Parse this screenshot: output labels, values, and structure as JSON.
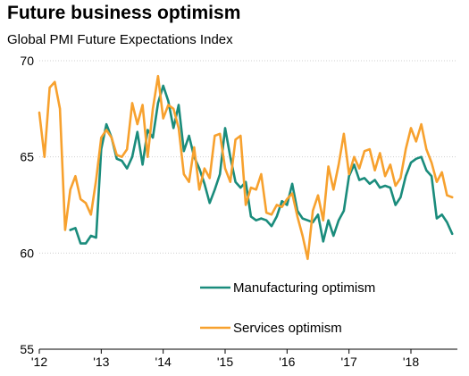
{
  "colors": {
    "manufacturing": "#1a8c7c",
    "services": "#f7a12e",
    "grid": "#cfcfcf",
    "axis": "#000000"
  },
  "chart_data": {
    "type": "line",
    "title": "Future business optimism",
    "subtitle": "Global PMI Future Expectations Index",
    "xlabel": "",
    "ylabel": "",
    "xlim": [
      2012.0,
      2018.75
    ],
    "ylim": [
      55,
      70
    ],
    "y_ticks": [
      55,
      60,
      65,
      70
    ],
    "x_ticks": [
      {
        "value": 2012,
        "label": "'12"
      },
      {
        "value": 2013,
        "label": "'13"
      },
      {
        "value": 2014,
        "label": "'14"
      },
      {
        "value": 2015,
        "label": "'15"
      },
      {
        "value": 2016,
        "label": "'16"
      },
      {
        "value": 2017,
        "label": "'17"
      },
      {
        "value": 2018,
        "label": "'18"
      }
    ],
    "grid": true,
    "legend_position": "center-right",
    "series": [
      {
        "name": "Manufacturing optimism",
        "color": "#1a8c7c",
        "x": [
          2012.5,
          2012.583,
          2012.667,
          2012.75,
          2012.833,
          2012.917,
          2013.0,
          2013.083,
          2013.167,
          2013.25,
          2013.333,
          2013.417,
          2013.5,
          2013.583,
          2013.667,
          2013.75,
          2013.833,
          2013.917,
          2014.0,
          2014.083,
          2014.167,
          2014.25,
          2014.333,
          2014.417,
          2014.5,
          2014.583,
          2014.667,
          2014.75,
          2014.833,
          2014.917,
          2015.0,
          2015.083,
          2015.167,
          2015.25,
          2015.333,
          2015.417,
          2015.5,
          2015.583,
          2015.667,
          2015.75,
          2015.833,
          2015.917,
          2016.0,
          2016.083,
          2016.167,
          2016.25,
          2016.333,
          2016.417,
          2016.5,
          2016.583,
          2016.667,
          2016.75,
          2016.833,
          2016.917,
          2017.0,
          2017.083,
          2017.167,
          2017.25,
          2017.333,
          2017.417,
          2017.5,
          2017.583,
          2017.667,
          2017.75,
          2017.833,
          2017.917,
          2018.0,
          2018.083,
          2018.167,
          2018.25,
          2018.333,
          2018.417,
          2018.5,
          2018.583,
          2018.667
        ],
        "values": [
          61.2,
          61.3,
          60.5,
          60.5,
          60.9,
          60.8,
          65.4,
          66.7,
          66.0,
          64.9,
          64.8,
          64.4,
          65.0,
          66.3,
          64.6,
          66.4,
          66.0,
          67.8,
          68.7,
          67.9,
          66.5,
          67.7,
          65.3,
          66.1,
          65.0,
          64.4,
          63.6,
          62.6,
          63.3,
          64.1,
          66.5,
          65.0,
          63.7,
          63.4,
          63.7,
          61.9,
          61.7,
          61.8,
          61.7,
          61.4,
          61.9,
          62.7,
          62.5,
          63.6,
          62.2,
          61.8,
          61.7,
          61.6,
          62.0,
          60.6,
          61.7,
          60.9,
          61.7,
          62.2,
          64.0,
          64.6,
          63.8,
          63.9,
          63.6,
          63.8,
          63.4,
          63.5,
          63.4,
          62.5,
          62.9,
          64.0,
          64.7,
          64.9,
          65.0,
          64.3,
          64.0,
          61.8,
          62.0,
          61.6,
          61.0
        ]
      },
      {
        "name": "Services optimism",
        "color": "#f7a12e",
        "x": [
          2012.0,
          2012.083,
          2012.167,
          2012.25,
          2012.333,
          2012.417,
          2012.5,
          2012.583,
          2012.667,
          2012.75,
          2012.833,
          2012.917,
          2013.0,
          2013.083,
          2013.167,
          2013.25,
          2013.333,
          2013.417,
          2013.5,
          2013.583,
          2013.667,
          2013.75,
          2013.833,
          2013.917,
          2014.0,
          2014.083,
          2014.167,
          2014.25,
          2014.333,
          2014.417,
          2014.5,
          2014.583,
          2014.667,
          2014.75,
          2014.833,
          2014.917,
          2015.0,
          2015.083,
          2015.167,
          2015.25,
          2015.333,
          2015.417,
          2015.5,
          2015.583,
          2015.667,
          2015.75,
          2015.833,
          2015.917,
          2016.0,
          2016.083,
          2016.167,
          2016.25,
          2016.333,
          2016.417,
          2016.5,
          2016.583,
          2016.667,
          2016.75,
          2016.833,
          2016.917,
          2017.0,
          2017.083,
          2017.167,
          2017.25,
          2017.333,
          2017.417,
          2017.5,
          2017.583,
          2017.667,
          2017.75,
          2017.833,
          2017.917,
          2018.0,
          2018.083,
          2018.167,
          2018.25,
          2018.333,
          2018.417,
          2018.5,
          2018.583,
          2018.667
        ],
        "values": [
          67.3,
          65.0,
          68.6,
          68.9,
          67.5,
          61.2,
          63.3,
          64.0,
          62.8,
          62.6,
          62.0,
          63.8,
          66.0,
          66.4,
          66.0,
          65.1,
          65.0,
          65.4,
          67.8,
          66.7,
          67.7,
          65.0,
          67.5,
          69.2,
          67.0,
          67.7,
          67.5,
          66.5,
          64.1,
          63.7,
          65.5,
          63.3,
          64.4,
          63.9,
          66.1,
          66.2,
          64.4,
          63.7,
          65.9,
          66.1,
          62.5,
          63.4,
          63.3,
          64.1,
          62.1,
          62.0,
          62.5,
          62.4,
          62.8,
          63.1,
          61.9,
          60.9,
          59.7,
          62.2,
          63.0,
          61.7,
          64.5,
          63.3,
          64.6,
          66.2,
          64.1,
          65.0,
          64.4,
          65.3,
          65.4,
          64.3,
          65.2,
          64.0,
          64.6,
          63.5,
          63.9,
          65.4,
          66.5,
          65.8,
          66.7,
          65.4,
          64.7,
          63.7,
          64.2,
          63.0,
          62.9
        ]
      }
    ]
  }
}
